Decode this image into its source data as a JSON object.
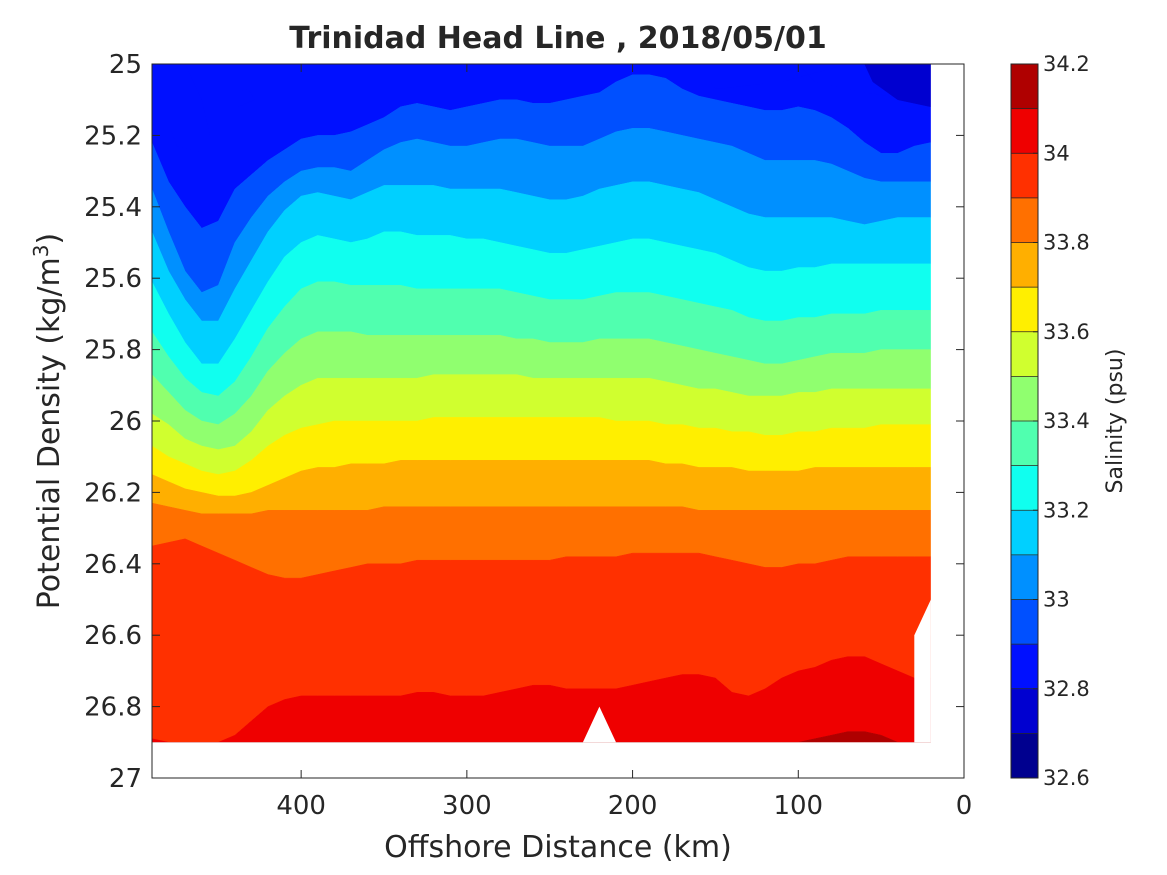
{
  "chart_data": {
    "type": "contourf",
    "title": "Trinidad Head Line , 2018/05/01",
    "xlabel": "Offshore Distance (km)",
    "ylabel": {
      "text": "Potential Density (kg/m",
      "superscript": "3",
      "suffix": ")"
    },
    "xlim": [
      490,
      0
    ],
    "ylim": [
      27,
      25
    ],
    "x_direction": "reversed",
    "y_direction": "reversed",
    "xticks": [
      400,
      300,
      200,
      100,
      0
    ],
    "xtick_labels": [
      "400",
      "300",
      "200",
      "100",
      "0"
    ],
    "yticks": [
      25,
      25.2,
      25.4,
      25.6,
      25.8,
      26,
      26.2,
      26.4,
      26.6,
      26.8,
      27
    ],
    "ytick_labels": [
      "25",
      "25.2",
      "25.4",
      "25.6",
      "25.8",
      "26",
      "26.2",
      "26.4",
      "26.6",
      "26.8",
      "27"
    ],
    "data_x_extent": [
      490,
      20
    ],
    "data_y_extent": [
      25,
      26.9
    ],
    "colorbar": {
      "label": "Salinity (psu)",
      "limits": [
        32.6,
        34.2
      ],
      "ticks": [
        32.6,
        32.8,
        33,
        33.2,
        33.4,
        33.6,
        33.8,
        34,
        34.2
      ],
      "tick_labels": [
        "32.6",
        "32.8",
        "33",
        "33.2",
        "33.4",
        "33.6",
        "33.8",
        "34",
        "34.2"
      ],
      "levels": [
        32.6,
        32.7,
        32.8,
        32.9,
        33.0,
        33.1,
        33.2,
        33.3,
        33.4,
        33.5,
        33.6,
        33.7,
        33.8,
        33.9,
        34.0,
        34.1,
        34.2
      ],
      "colors": [
        "#00008f",
        "#0000d0",
        "#0010ff",
        "#0050ff",
        "#0090ff",
        "#00d0ff",
        "#10ffef",
        "#50ffaf",
        "#90ff6f",
        "#d0ff2f",
        "#ffef00",
        "#ffaf00",
        "#ff7000",
        "#ff3000",
        "#ef0000",
        "#af0000"
      ]
    },
    "band_boundaries": {
      "x": [
        490,
        480,
        470,
        460,
        450,
        440,
        430,
        420,
        410,
        400,
        390,
        380,
        370,
        360,
        350,
        340,
        330,
        320,
        310,
        300,
        290,
        280,
        270,
        260,
        250,
        240,
        230,
        220,
        210,
        200,
        190,
        180,
        170,
        160,
        150,
        140,
        130,
        120,
        110,
        100,
        90,
        80,
        70,
        60,
        50,
        40,
        30,
        20
      ],
      "lines": [
        {
          "level": 32.9,
          "y": [
            25.22,
            25.33,
            25.4,
            25.46,
            25.44,
            25.35,
            25.31,
            25.27,
            25.24,
            25.21,
            25.2,
            25.2,
            25.19,
            25.17,
            25.15,
            25.12,
            25.11,
            25.12,
            25.13,
            25.12,
            25.11,
            25.1,
            25.1,
            25.11,
            25.11,
            25.1,
            25.09,
            25.08,
            25.05,
            25.03,
            25.03,
            25.04,
            25.07,
            25.09,
            25.1,
            25.11,
            25.12,
            25.13,
            25.13,
            25.12,
            25.13,
            25.15,
            25.18,
            25.22,
            25.25,
            25.25,
            25.23,
            25.22
          ]
        },
        {
          "level": 33.0,
          "y": [
            25.35,
            25.47,
            25.58,
            25.64,
            25.62,
            25.5,
            25.43,
            25.37,
            25.33,
            25.3,
            25.29,
            25.29,
            25.3,
            25.27,
            25.24,
            25.22,
            25.21,
            25.22,
            25.23,
            25.23,
            25.22,
            25.21,
            25.21,
            25.22,
            25.23,
            25.23,
            25.23,
            25.21,
            25.19,
            25.18,
            25.18,
            25.19,
            25.2,
            25.21,
            25.22,
            25.23,
            25.25,
            25.27,
            25.27,
            25.27,
            25.27,
            25.28,
            25.3,
            25.32,
            25.33,
            25.33,
            25.33,
            25.33
          ]
        },
        {
          "level": 33.1,
          "y": [
            25.47,
            25.58,
            25.66,
            25.72,
            25.72,
            25.63,
            25.55,
            25.47,
            25.41,
            25.37,
            25.36,
            25.37,
            25.38,
            25.36,
            25.34,
            25.34,
            25.34,
            25.34,
            25.35,
            25.35,
            25.35,
            25.35,
            25.36,
            25.37,
            25.38,
            25.38,
            25.37,
            25.35,
            25.34,
            25.33,
            25.33,
            25.34,
            25.35,
            25.36,
            25.38,
            25.4,
            25.42,
            25.43,
            25.43,
            25.43,
            25.43,
            25.43,
            25.44,
            25.45,
            25.44,
            25.43,
            25.43,
            25.43
          ]
        },
        {
          "level": 33.2,
          "y": [
            25.61,
            25.7,
            25.78,
            25.84,
            25.84,
            25.77,
            25.69,
            25.61,
            25.54,
            25.5,
            25.48,
            25.49,
            25.5,
            25.49,
            25.47,
            25.47,
            25.48,
            25.48,
            25.48,
            25.49,
            25.49,
            25.5,
            25.51,
            25.52,
            25.53,
            25.53,
            25.52,
            25.51,
            25.5,
            25.49,
            25.49,
            25.5,
            25.51,
            25.52,
            25.53,
            25.55,
            25.57,
            25.58,
            25.58,
            25.57,
            25.57,
            25.56,
            25.56,
            25.56,
            25.56,
            25.56,
            25.56,
            25.56
          ]
        },
        {
          "level": 33.3,
          "y": [
            25.75,
            25.82,
            25.88,
            25.92,
            25.93,
            25.89,
            25.82,
            25.74,
            25.68,
            25.63,
            25.61,
            25.61,
            25.62,
            25.62,
            25.62,
            25.62,
            25.63,
            25.63,
            25.63,
            25.63,
            25.63,
            25.63,
            25.64,
            25.65,
            25.66,
            25.66,
            25.66,
            25.65,
            25.64,
            25.64,
            25.64,
            25.65,
            25.66,
            25.67,
            25.68,
            25.69,
            25.71,
            25.72,
            25.72,
            25.71,
            25.71,
            25.7,
            25.7,
            25.7,
            25.69,
            25.69,
            25.69,
            25.69
          ]
        },
        {
          "level": 33.4,
          "y": [
            25.87,
            25.92,
            25.97,
            26.0,
            26.01,
            25.98,
            25.93,
            25.86,
            25.81,
            25.77,
            25.75,
            25.75,
            25.75,
            25.76,
            25.76,
            25.76,
            25.76,
            25.76,
            25.76,
            25.76,
            25.76,
            25.76,
            25.77,
            25.77,
            25.78,
            25.78,
            25.78,
            25.77,
            25.77,
            25.77,
            25.77,
            25.78,
            25.79,
            25.8,
            25.81,
            25.82,
            25.83,
            25.84,
            25.84,
            25.83,
            25.82,
            25.81,
            25.81,
            25.81,
            25.8,
            25.8,
            25.8,
            25.8
          ]
        },
        {
          "level": 33.5,
          "y": [
            25.98,
            26.01,
            26.05,
            26.07,
            26.08,
            26.07,
            26.03,
            25.97,
            25.93,
            25.9,
            25.88,
            25.88,
            25.88,
            25.88,
            25.88,
            25.88,
            25.88,
            25.87,
            25.87,
            25.87,
            25.87,
            25.87,
            25.87,
            25.88,
            25.88,
            25.88,
            25.88,
            25.88,
            25.88,
            25.88,
            25.88,
            25.89,
            25.9,
            25.91,
            25.91,
            25.92,
            25.93,
            25.93,
            25.93,
            25.92,
            25.92,
            25.91,
            25.91,
            25.91,
            25.91,
            25.91,
            25.91,
            25.91
          ]
        },
        {
          "level": 33.6,
          "y": [
            26.07,
            26.1,
            26.12,
            26.14,
            26.15,
            26.14,
            26.11,
            26.07,
            26.04,
            26.02,
            26.01,
            26.0,
            26.0,
            26.0,
            26.0,
            26.0,
            26.0,
            25.99,
            25.99,
            25.99,
            25.99,
            25.99,
            25.99,
            25.99,
            25.99,
            25.99,
            25.99,
            25.99,
            26.0,
            26.0,
            26.0,
            26.01,
            26.01,
            26.02,
            26.02,
            26.03,
            26.03,
            26.04,
            26.04,
            26.03,
            26.03,
            26.02,
            26.02,
            26.02,
            26.01,
            26.01,
            26.01,
            26.01
          ]
        },
        {
          "level": 33.7,
          "y": [
            26.15,
            26.17,
            26.19,
            26.2,
            26.21,
            26.21,
            26.2,
            26.18,
            26.16,
            26.14,
            26.13,
            26.13,
            26.12,
            26.12,
            26.12,
            26.11,
            26.11,
            26.11,
            26.11,
            26.11,
            26.11,
            26.11,
            26.11,
            26.11,
            26.11,
            26.11,
            26.11,
            26.11,
            26.11,
            26.11,
            26.11,
            26.12,
            26.12,
            26.13,
            26.13,
            26.13,
            26.14,
            26.14,
            26.14,
            26.14,
            26.13,
            26.13,
            26.13,
            26.13,
            26.13,
            26.13,
            26.13,
            26.13
          ]
        },
        {
          "level": 33.8,
          "y": [
            26.23,
            26.24,
            26.25,
            26.26,
            26.26,
            26.26,
            26.26,
            26.25,
            26.25,
            26.25,
            26.25,
            26.25,
            26.25,
            26.25,
            26.24,
            26.24,
            26.24,
            26.24,
            26.24,
            26.24,
            26.24,
            26.24,
            26.24,
            26.24,
            26.24,
            26.24,
            26.24,
            26.24,
            26.24,
            26.24,
            26.24,
            26.24,
            26.24,
            26.25,
            26.25,
            26.25,
            26.25,
            26.25,
            26.25,
            26.25,
            26.25,
            26.25,
            26.25,
            26.25,
            26.25,
            26.25,
            26.25,
            26.25
          ]
        },
        {
          "level": 33.9,
          "y": [
            26.35,
            26.34,
            26.33,
            26.35,
            26.37,
            26.39,
            26.41,
            26.43,
            26.44,
            26.44,
            26.43,
            26.42,
            26.41,
            26.4,
            26.4,
            26.4,
            26.39,
            26.39,
            26.39,
            26.39,
            26.39,
            26.39,
            26.39,
            26.39,
            26.39,
            26.38,
            26.38,
            26.38,
            26.38,
            26.37,
            26.37,
            26.37,
            26.37,
            26.37,
            26.38,
            26.39,
            26.4,
            26.41,
            26.41,
            26.4,
            26.4,
            26.39,
            26.38,
            26.38,
            26.38,
            26.38,
            26.38,
            26.38
          ]
        },
        {
          "level": 34.0,
          "y": [
            26.89,
            26.9,
            26.9,
            26.9,
            26.9,
            26.88,
            26.84,
            26.8,
            26.78,
            26.77,
            26.77,
            26.77,
            26.77,
            26.77,
            26.77,
            26.77,
            26.76,
            26.76,
            26.77,
            26.77,
            26.77,
            26.76,
            26.75,
            26.74,
            26.74,
            26.75,
            26.75,
            26.75,
            26.75,
            26.74,
            26.73,
            26.72,
            26.71,
            26.71,
            26.72,
            26.76,
            26.77,
            26.75,
            26.72,
            26.7,
            26.69,
            26.67,
            26.66,
            26.66,
            26.68,
            26.7,
            26.72,
            26.72
          ]
        },
        {
          "level": 34.1,
          "y": [
            26.9,
            26.9,
            26.9,
            26.9,
            26.9,
            26.9,
            26.9,
            26.9,
            26.9,
            26.9,
            26.9,
            26.9,
            26.9,
            26.9,
            26.9,
            26.9,
            26.9,
            26.9,
            26.9,
            26.9,
            26.9,
            26.9,
            26.9,
            26.9,
            26.9,
            26.9,
            26.9,
            26.9,
            26.9,
            26.9,
            26.9,
            26.9,
            26.9,
            26.9,
            26.9,
            26.9,
            26.9,
            26.9,
            26.9,
            26.9,
            26.89,
            26.88,
            26.87,
            26.87,
            26.88,
            26.9,
            26.9,
            26.9
          ]
        }
      ]
    },
    "low_salinity_patches": [
      {
        "level": 32.8,
        "points": [
          [
            490,
            25.0
          ],
          [
            470,
            25.0
          ],
          [
            460,
            25.1
          ],
          [
            455,
            25.2
          ],
          [
            458,
            25.25
          ],
          [
            475,
            25.23
          ],
          [
            485,
            25.1
          ]
        ]
      },
      {
        "level": 32.8,
        "points": [
          [
            440,
            25.08
          ],
          [
            432,
            25.07
          ],
          [
            428,
            25.1
          ],
          [
            438,
            25.12
          ]
        ]
      },
      {
        "level": 32.8,
        "points": [
          [
            160,
            25.0
          ],
          [
            100,
            25.0
          ],
          [
            90,
            25.05
          ],
          [
            60,
            25.08
          ],
          [
            30,
            25.1
          ],
          [
            20,
            25.1
          ],
          [
            20,
            25.0
          ],
          [
            70,
            25.0
          ],
          [
            110,
            25.05
          ],
          [
            150,
            25.07
          ]
        ]
      },
      {
        "level": 32.7,
        "points": [
          [
            60,
            25.0
          ],
          [
            20,
            25.0
          ],
          [
            20,
            25.12
          ],
          [
            40,
            25.1
          ],
          [
            55,
            25.05
          ]
        ]
      }
    ],
    "masked_regions": [
      {
        "points": [
          [
            230,
            26.9
          ],
          [
            220,
            26.8
          ],
          [
            210,
            26.9
          ]
        ]
      },
      {
        "points": [
          [
            30,
            26.9
          ],
          [
            30,
            26.6
          ],
          [
            20,
            26.5
          ],
          [
            20,
            26.9
          ]
        ]
      }
    ]
  }
}
